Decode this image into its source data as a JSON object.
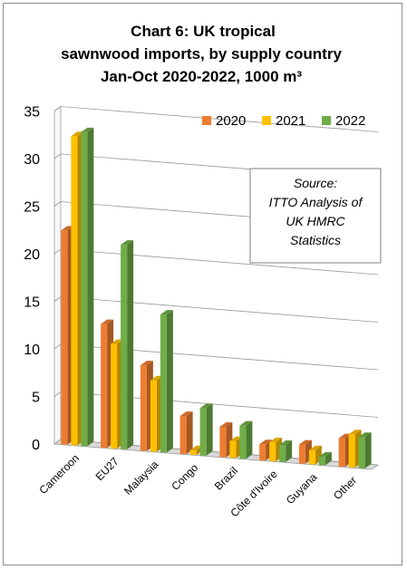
{
  "chart_data": {
    "type": "bar",
    "title_lines": [
      "Chart 6: UK tropical",
      "sawnwood imports, by supply country",
      "Jan-Oct 2020-2022, 1000 m³"
    ],
    "categories": [
      "Cameroon",
      "EU27",
      "Malaysia",
      "Congo",
      "Brazil",
      "Côte d'Ivoire",
      "Guyana",
      "Other"
    ],
    "series": [
      {
        "name": "2020",
        "color": "#ED7D31",
        "values": [
          22.5,
          13.0,
          9.0,
          4.0,
          3.2,
          1.7,
          2.0,
          3.0
        ]
      },
      {
        "name": "2021",
        "color": "#FFC000",
        "values": [
          32.5,
          11.0,
          7.5,
          0.5,
          1.8,
          2.0,
          1.5,
          3.5
        ]
      },
      {
        "name": "2022",
        "color": "#70AD47",
        "values": [
          33.0,
          21.5,
          14.5,
          5.0,
          3.5,
          1.8,
          0.9,
          3.3
        ]
      }
    ],
    "yticks": [
      "0",
      "5",
      "10",
      "15",
      "20",
      "25",
      "30",
      "35"
    ],
    "ylim": [
      0,
      35
    ],
    "grid": true,
    "legend_position": "top-right",
    "source_lines": [
      "Source:",
      "ITTO Analysis of",
      "UK HMRC",
      "Statistics"
    ]
  }
}
